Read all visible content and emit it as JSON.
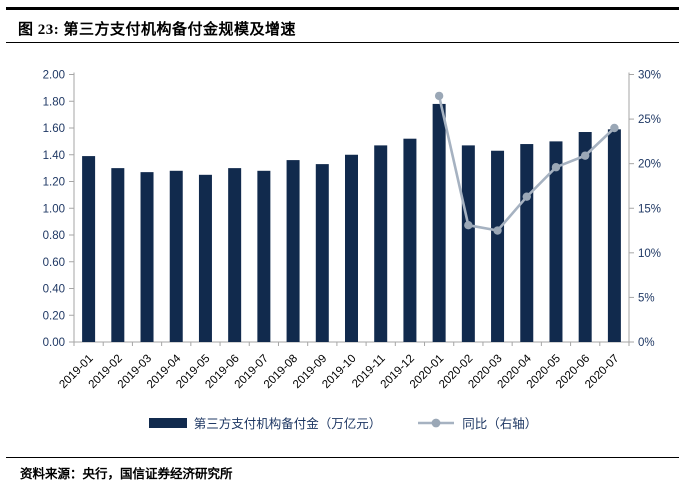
{
  "figure": {
    "title": "图 23: 第三方支付机构备付金规模及增速",
    "source": "资料来源：央行，国信证券经济研究所"
  },
  "legend": [
    {
      "type": "bar",
      "label": "第三方支付机构备付金（万亿元）"
    },
    {
      "type": "line",
      "label": "同比（右轴）"
    }
  ],
  "colors": {
    "bar": "#112A4D",
    "line": "#A6B2C1",
    "marker": "#9AA7B6",
    "axis": "#A6A6A6",
    "axis_label": "#1F3864",
    "x_label": "#000000"
  },
  "chart_data": {
    "type": "bar",
    "title": "第三方支付机构备付金规模及增速",
    "categories": [
      "2019-01",
      "2019-02",
      "2019-03",
      "2019-04",
      "2019-05",
      "2019-06",
      "2019-07",
      "2019-08",
      "2019-09",
      "2019-10",
      "2019-11",
      "2019-12",
      "2020-01",
      "2020-02",
      "2020-03",
      "2020-04",
      "2020-05",
      "2020-06",
      "2020-07"
    ],
    "series": [
      {
        "name": "第三方支付机构备付金（万亿元）",
        "type": "bar",
        "axis": "left",
        "values": [
          1.39,
          1.3,
          1.27,
          1.28,
          1.25,
          1.3,
          1.28,
          1.36,
          1.33,
          1.4,
          1.47,
          1.52,
          1.78,
          1.47,
          1.43,
          1.48,
          1.5,
          1.57,
          1.59
        ]
      },
      {
        "name": "同比（右轴）",
        "type": "line",
        "axis": "right",
        "values": [
          null,
          null,
          null,
          null,
          null,
          null,
          null,
          null,
          null,
          null,
          null,
          null,
          27.6,
          13.1,
          12.5,
          16.3,
          19.6,
          20.9,
          24.0
        ]
      }
    ],
    "left_axis": {
      "min": 0,
      "max": 2.0,
      "step": 0.2,
      "format": "2-decimals"
    },
    "right_axis": {
      "min": 0,
      "max": 30,
      "step": 5,
      "format": "percent"
    },
    "grid": false,
    "legend_position": "bottom"
  }
}
